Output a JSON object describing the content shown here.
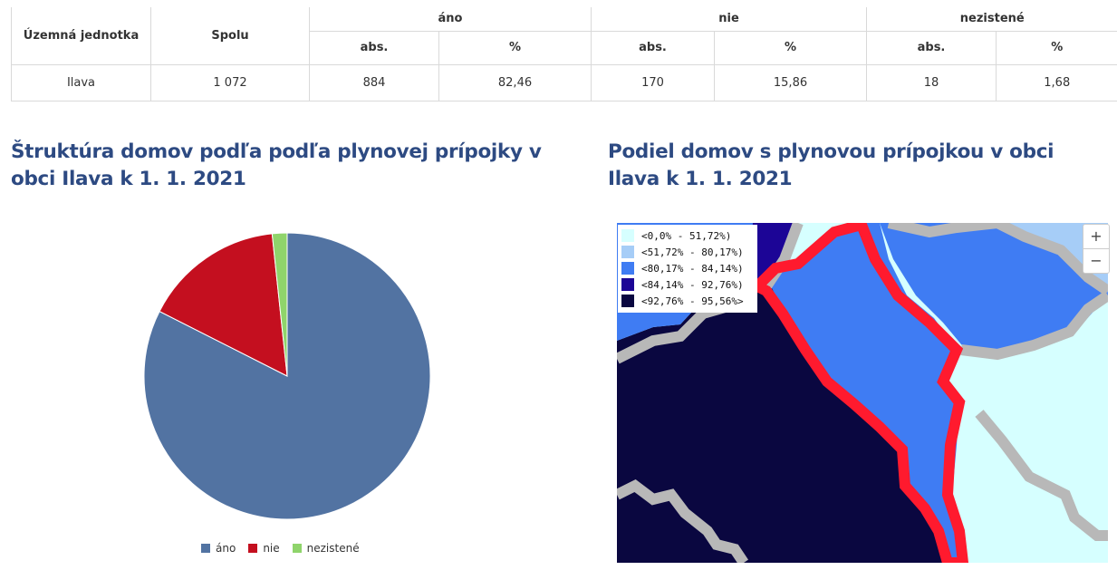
{
  "table": {
    "headers": {
      "unit": "Územná jednotka",
      "total": "Spolu",
      "groups": [
        "áno",
        "nie",
        "nezistené"
      ],
      "sub_abs": "abs.",
      "sub_pct": "%"
    },
    "row": {
      "unit": "Ilava",
      "total": "1 072",
      "ano_abs": "884",
      "ano_pct": "82,46",
      "nie_abs": "170",
      "nie_pct": "15,86",
      "nez_abs": "18",
      "nez_pct": "1,68"
    }
  },
  "pie_heading": "Štruktúra domov podľa podľa plynovej prípojky v obci Ilava k 1. 1. 2021",
  "map_heading": "Podiel domov s plynovou prípojkou v obci Ilava k 1. 1. 2021",
  "chart_data": {
    "type": "pie",
    "categories": [
      "áno",
      "nie",
      "nezistené"
    ],
    "values": [
      884,
      170,
      18
    ],
    "colors": [
      "#5273a2",
      "#c40f1f",
      "#8fd46b"
    ],
    "legend_position": "bottom-center"
  },
  "map": {
    "legend": [
      {
        "label": "<0,0% - 51,72%)",
        "color": "#d6ffff"
      },
      {
        "label": "<51,72% - 80,17%)",
        "color": "#a6cdf7"
      },
      {
        "label": "<80,17% - 84,14%)",
        "color": "#3f7cf3"
      },
      {
        "label": "<84,14% - 92,76%)",
        "color": "#1c0596"
      },
      {
        "label": "<92,76% - 95,56%>",
        "color": "#0a0740"
      }
    ],
    "highlight_color": "#ff1a2e",
    "border_color": "#b8b8b8",
    "zoom_in": "+",
    "zoom_out": "−"
  }
}
